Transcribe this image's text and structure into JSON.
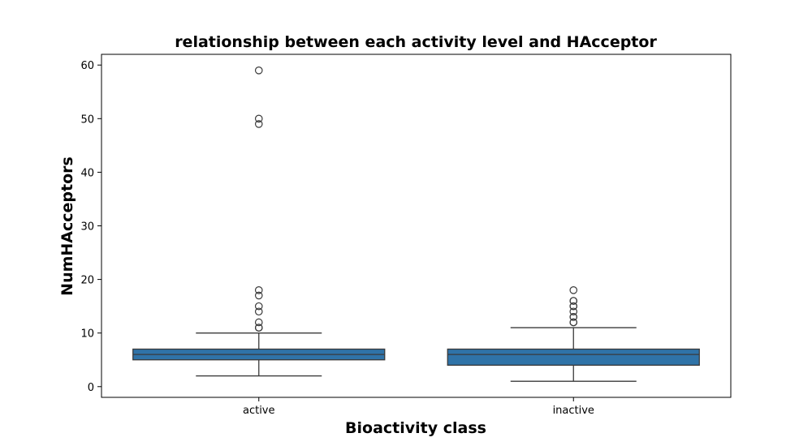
{
  "chart_data": {
    "type": "box",
    "title": "relationship between each activity level and HAcceptor",
    "xlabel": "Bioactivity class",
    "ylabel": "NumHAcceptors",
    "ylim": [
      -2,
      62
    ],
    "yticks": [
      0,
      10,
      20,
      30,
      40,
      50,
      60
    ],
    "grid": false,
    "categories": [
      "active",
      "inactive"
    ],
    "box_color": "#2f73a8",
    "line_color": "#3a3a3a",
    "boxes": [
      {
        "category": "active",
        "whisker_low": 2,
        "q1": 5,
        "median": 6,
        "q3": 7,
        "whisker_high": 10,
        "outliers": [
          11,
          11,
          12,
          14,
          15,
          17,
          18,
          49,
          50,
          59
        ]
      },
      {
        "category": "inactive",
        "whisker_low": 1,
        "q1": 4,
        "median": 6,
        "q3": 7,
        "whisker_high": 11,
        "outliers": [
          12,
          12,
          13,
          13,
          14,
          15,
          15,
          16,
          16,
          18
        ]
      }
    ]
  }
}
